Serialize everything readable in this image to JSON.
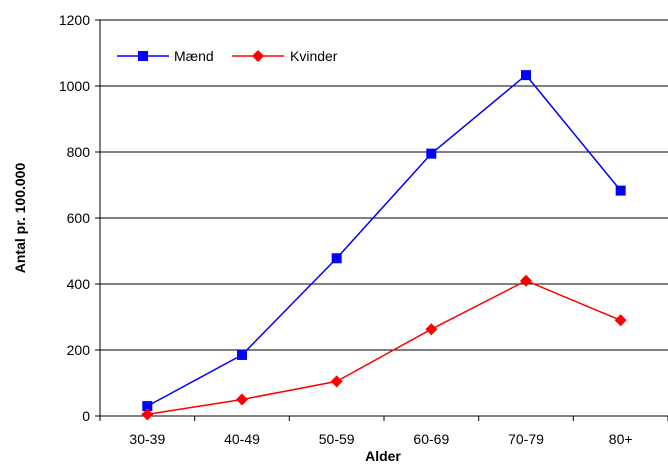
{
  "chart_data": {
    "type": "line",
    "title": "",
    "xlabel": "Alder",
    "ylabel": "Antal pr. 100.000",
    "categories": [
      "30-39",
      "40-49",
      "50-59",
      "60-69",
      "70-79",
      "80+"
    ],
    "ylim": [
      0,
      1200
    ],
    "yticks": [
      "0",
      "200",
      "400",
      "600",
      "800",
      "1000",
      "1200"
    ],
    "grid": true,
    "legend": "top-left",
    "series": [
      {
        "name": "Mænd",
        "color": "#0000ff",
        "marker": "square",
        "values": [
          30,
          185,
          478,
          795,
          1033,
          683
        ]
      },
      {
        "name": "Kvinder",
        "color": "#ff0000",
        "marker": "diamond",
        "values": [
          5,
          50,
          105,
          263,
          410,
          290
        ]
      }
    ]
  }
}
